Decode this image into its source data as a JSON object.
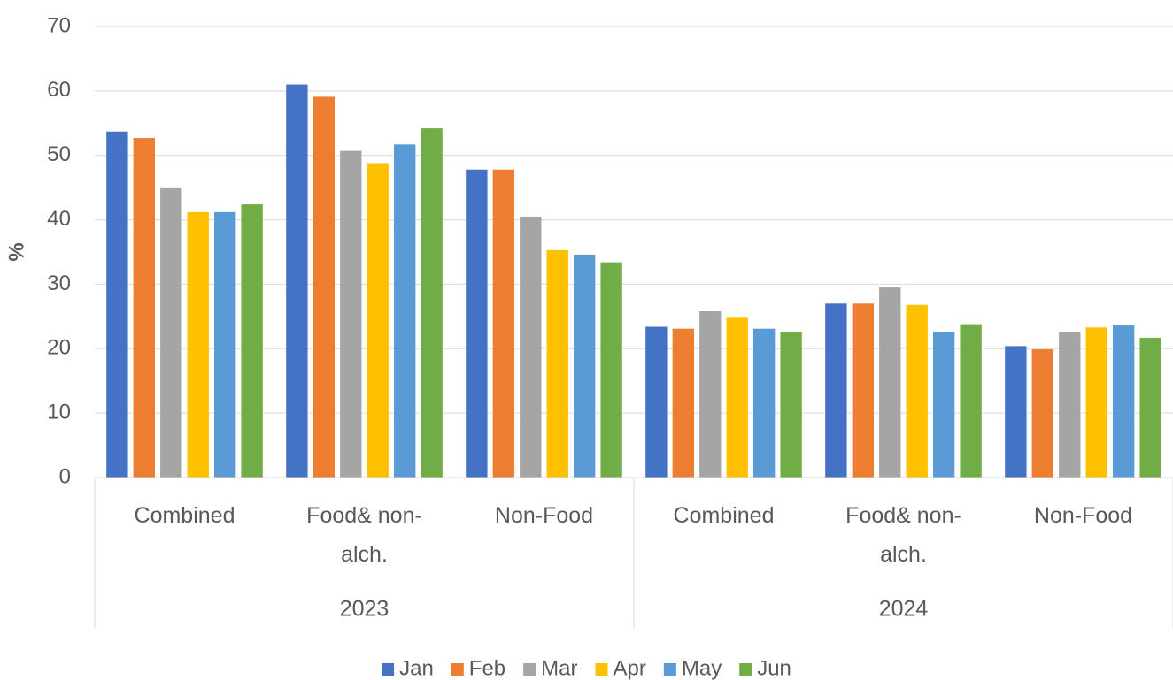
{
  "chart_data": {
    "type": "bar",
    "ylabel": "%",
    "groups": [
      {
        "label": "2023",
        "categories": [
          "Combined",
          "Food& non-alch.",
          "Non-Food"
        ]
      },
      {
        "label": "2024",
        "categories": [
          "Combined",
          "Food& non-alch.",
          "Non-Food"
        ]
      }
    ],
    "series": [
      {
        "name": "Jan",
        "color": "#4472c4",
        "values": [
          53.7,
          61,
          47.8,
          23.4,
          27,
          20.4
        ]
      },
      {
        "name": "Feb",
        "color": "#ed7d31",
        "values": [
          52.7,
          59.1,
          47.8,
          23.1,
          27,
          19.9
        ]
      },
      {
        "name": "Mar",
        "color": "#a5a5a5",
        "values": [
          44.9,
          50.7,
          40.5,
          25.8,
          29.5,
          22.6
        ]
      },
      {
        "name": "Apr",
        "color": "#ffc000",
        "values": [
          41.2,
          48.8,
          35.3,
          24.8,
          26.8,
          23.3
        ]
      },
      {
        "name": "May",
        "color": "#5b9bd5",
        "values": [
          41.2,
          51.7,
          34.6,
          23.1,
          22.6,
          23.6
        ]
      },
      {
        "name": "Jun",
        "color": "#70ad47",
        "values": [
          42.4,
          54.2,
          33.4,
          22.6,
          23.8,
          21.7
        ]
      }
    ],
    "ylim": [
      0,
      70
    ],
    "yticks": [
      0,
      10,
      20,
      30,
      40,
      50,
      60,
      70
    ],
    "grid": true,
    "legend": "bottom"
  }
}
